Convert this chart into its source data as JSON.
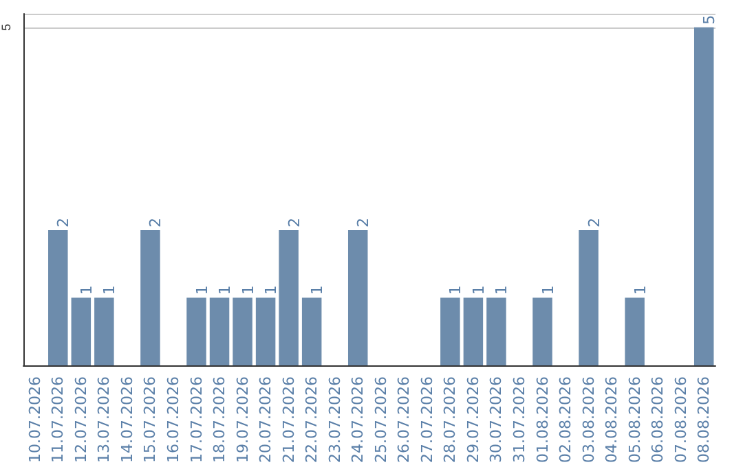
{
  "chart_data": {
    "type": "bar",
    "categories": [
      "10.07.2026",
      "11.07.2026",
      "12.07.2026",
      "13.07.2026",
      "14.07.2026",
      "15.07.2026",
      "16.07.2026",
      "17.07.2026",
      "18.07.2026",
      "19.07.2026",
      "20.07.2026",
      "21.07.2026",
      "22.07.2026",
      "23.07.2026",
      "24.07.2026",
      "25.07.2026",
      "26.07.2026",
      "27.07.2026",
      "28.07.2026",
      "29.07.2026",
      "30.07.2026",
      "31.07.2026",
      "01.08.2026",
      "02.08.2026",
      "03.08.2026",
      "04.08.2026",
      "05.08.2026",
      "06.08.2026",
      "07.08.2026",
      "08.08.2026"
    ],
    "values": [
      0,
      2,
      1,
      1,
      0,
      2,
      0,
      1,
      1,
      1,
      1,
      2,
      1,
      0,
      2,
      0,
      0,
      0,
      1,
      1,
      1,
      0,
      1,
      0,
      2,
      0,
      1,
      0,
      0,
      5
    ],
    "value_labels": [
      null,
      "2",
      "1",
      "1",
      null,
      "2",
      null,
      "1",
      "1",
      "1",
      "1",
      "2",
      "1",
      null,
      "2",
      null,
      null,
      null,
      "1",
      "1",
      "1",
      null,
      "1",
      null,
      "2",
      null,
      "1",
      null,
      null,
      "5"
    ],
    "color": "#6d8cac",
    "ylim": [
      0,
      5.2
    ],
    "yticks": [
      5
    ],
    "grid": "y"
  }
}
